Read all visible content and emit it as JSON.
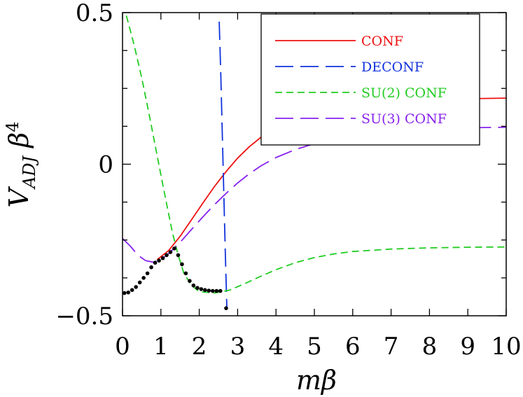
{
  "chart_data": {
    "type": "line",
    "xlabel": "mβ",
    "ylabel": "V_ADJ β⁴",
    "xlim": [
      0,
      10
    ],
    "ylim": [
      -0.5,
      0.5
    ],
    "x_ticks": [
      "0",
      "1",
      "2",
      "3",
      "4",
      "5",
      "6",
      "7",
      "8",
      "9",
      "10"
    ],
    "y_ticks": [
      "−0.5",
      "0",
      "0.5"
    ],
    "grid": false,
    "legend_position": "top-right",
    "series": [
      {
        "name": "CONF",
        "color": "#ee1111",
        "dash": "solid",
        "points": [
          [
            0.9,
            -0.315
          ],
          [
            1.2,
            -0.285
          ],
          [
            1.5,
            -0.238
          ],
          [
            1.8,
            -0.183
          ],
          [
            2.1,
            -0.127
          ],
          [
            2.4,
            -0.073
          ],
          [
            2.7,
            -0.024
          ],
          [
            3.0,
            0.02
          ],
          [
            3.3,
            0.057
          ],
          [
            3.6,
            0.088
          ],
          [
            4.0,
            0.118
          ],
          [
            4.5,
            0.148
          ],
          [
            5.0,
            0.168
          ],
          [
            5.5,
            0.182
          ],
          [
            6.0,
            0.192
          ],
          [
            6.5,
            0.199
          ],
          [
            7.0,
            0.205
          ],
          [
            8.0,
            0.212
          ],
          [
            9.0,
            0.216
          ],
          [
            10.0,
            0.218
          ]
        ]
      },
      {
        "name": "DECONF",
        "color": "#1133dd",
        "dash": "longdash",
        "points": [
          [
            2.52,
            0.47
          ],
          [
            2.56,
            0.3
          ],
          [
            2.6,
            0.1
          ],
          [
            2.64,
            -0.1
          ],
          [
            2.68,
            -0.3
          ],
          [
            2.72,
            -0.48
          ]
        ]
      },
      {
        "name": "SU(2) CONF",
        "color": "#22cc22",
        "dash": "dash",
        "points": [
          [
            0.1,
            0.49
          ],
          [
            0.3,
            0.395
          ],
          [
            0.5,
            0.285
          ],
          [
            0.7,
            0.16
          ],
          [
            0.9,
            0.03
          ],
          [
            1.1,
            -0.1
          ],
          [
            1.3,
            -0.225
          ],
          [
            1.45,
            -0.3
          ],
          [
            1.6,
            -0.36
          ],
          [
            1.8,
            -0.4
          ],
          [
            2.0,
            -0.42
          ],
          [
            2.4,
            -0.425
          ],
          [
            2.8,
            -0.415
          ],
          [
            3.2,
            -0.393
          ],
          [
            3.6,
            -0.37
          ],
          [
            4.0,
            -0.348
          ],
          [
            4.5,
            -0.325
          ],
          [
            5.0,
            -0.308
          ],
          [
            5.5,
            -0.296
          ],
          [
            6.0,
            -0.288
          ],
          [
            7.0,
            -0.28
          ],
          [
            8.0,
            -0.276
          ],
          [
            9.0,
            -0.274
          ],
          [
            10.0,
            -0.273
          ]
        ]
      },
      {
        "name": "SU(3) CONF",
        "color": "#8822ee",
        "dash": "longdash",
        "points": [
          [
            0.0,
            -0.245
          ],
          [
            0.2,
            -0.27
          ],
          [
            0.4,
            -0.3
          ],
          [
            0.6,
            -0.318
          ],
          [
            0.8,
            -0.323
          ],
          [
            1.0,
            -0.315
          ],
          [
            1.2,
            -0.295
          ],
          [
            1.5,
            -0.258
          ],
          [
            1.8,
            -0.215
          ],
          [
            2.1,
            -0.173
          ],
          [
            2.4,
            -0.133
          ],
          [
            2.7,
            -0.096
          ],
          [
            3.0,
            -0.062
          ],
          [
            3.3,
            -0.032
          ],
          [
            3.6,
            -0.006
          ],
          [
            4.0,
            0.022
          ],
          [
            4.5,
            0.048
          ],
          [
            5.0,
            0.068
          ],
          [
            5.5,
            0.083
          ],
          [
            6.0,
            0.094
          ],
          [
            7.0,
            0.108
          ],
          [
            8.0,
            0.116
          ],
          [
            9.0,
            0.12
          ],
          [
            10.0,
            0.122
          ]
        ]
      },
      {
        "name": "",
        "color": "#000000",
        "dash": "dots",
        "points": [
          [
            0.05,
            -0.425
          ],
          [
            0.15,
            -0.423
          ],
          [
            0.25,
            -0.415
          ],
          [
            0.35,
            -0.405
          ],
          [
            0.45,
            -0.39
          ],
          [
            0.55,
            -0.375
          ],
          [
            0.65,
            -0.36
          ],
          [
            0.75,
            -0.34
          ],
          [
            0.85,
            -0.325
          ],
          [
            0.95,
            -0.318
          ],
          [
            1.05,
            -0.31
          ],
          [
            1.15,
            -0.3
          ],
          [
            1.25,
            -0.29
          ],
          [
            1.35,
            -0.278
          ],
          [
            1.45,
            -0.3
          ],
          [
            1.55,
            -0.33
          ],
          [
            1.65,
            -0.36
          ],
          [
            1.75,
            -0.385
          ],
          [
            1.85,
            -0.4
          ],
          [
            1.95,
            -0.408
          ],
          [
            2.05,
            -0.412
          ],
          [
            2.15,
            -0.415
          ],
          [
            2.25,
            -0.417
          ],
          [
            2.35,
            -0.418
          ],
          [
            2.45,
            -0.418
          ],
          [
            2.55,
            -0.418
          ],
          [
            2.7,
            -0.475
          ]
        ]
      }
    ]
  }
}
